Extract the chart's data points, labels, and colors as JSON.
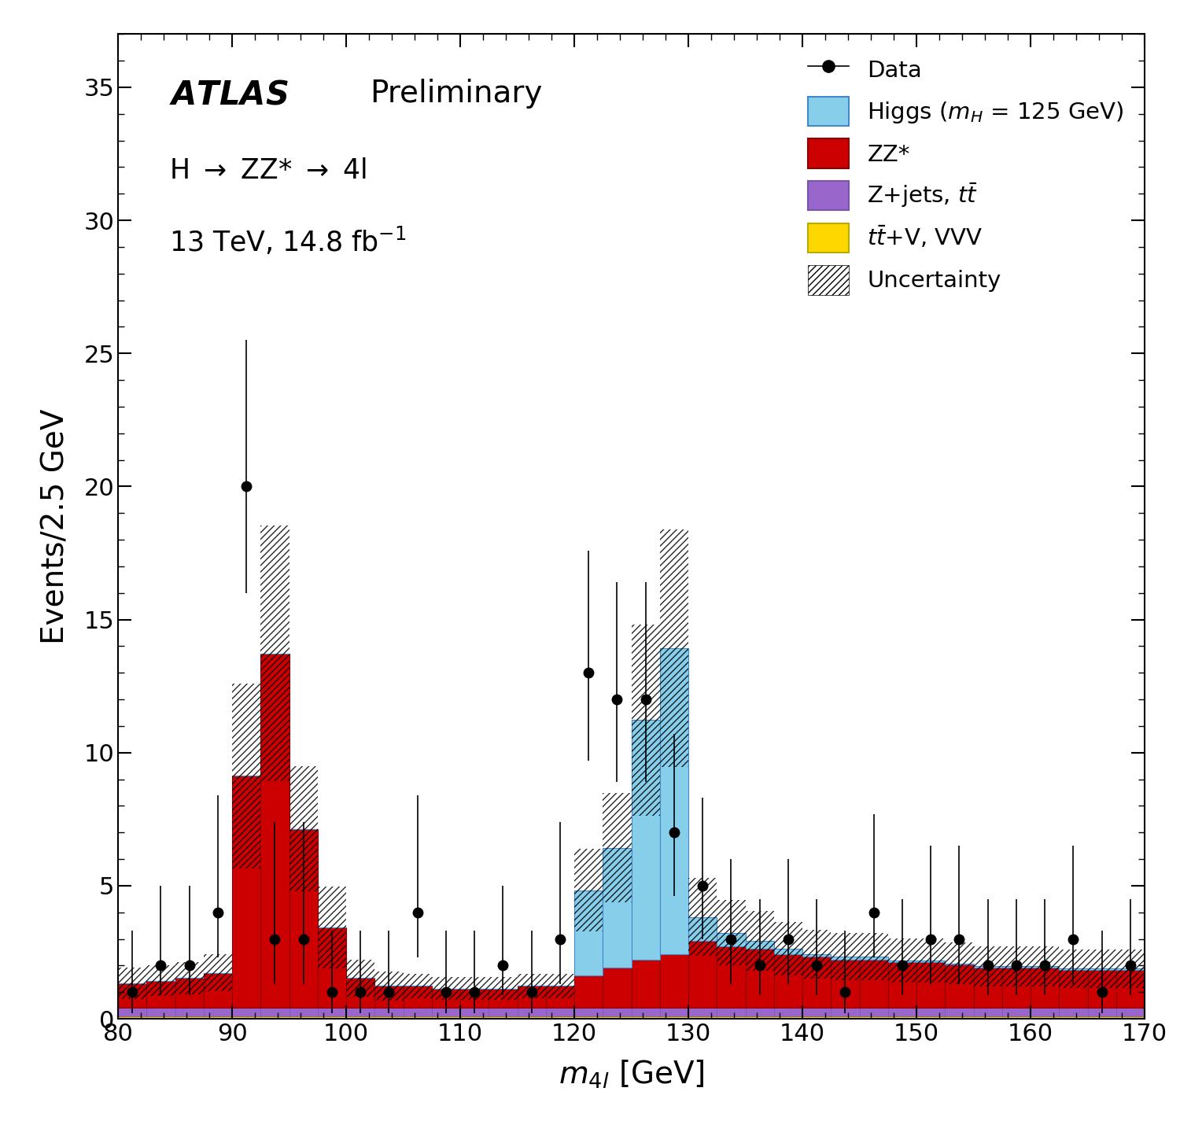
{
  "bin_edges": [
    80,
    82.5,
    85,
    87.5,
    90,
    92.5,
    95,
    97.5,
    100,
    102.5,
    105,
    107.5,
    110,
    112.5,
    115,
    117.5,
    120,
    122.5,
    125,
    127.5,
    130,
    132.5,
    135,
    137.5,
    140,
    142.5,
    145,
    147.5,
    150,
    152.5,
    155,
    157.5,
    160,
    162.5,
    165,
    167.5,
    170
  ],
  "zz_values": [
    0.9,
    1.0,
    1.1,
    1.3,
    8.7,
    13.3,
    6.7,
    3.0,
    1.1,
    0.8,
    0.8,
    0.7,
    0.7,
    0.7,
    0.8,
    0.8,
    1.2,
    1.5,
    1.8,
    2.0,
    2.5,
    2.3,
    2.2,
    2.0,
    1.9,
    1.8,
    1.8,
    1.7,
    1.7,
    1.6,
    1.5,
    1.5,
    1.5,
    1.4,
    1.4,
    1.4
  ],
  "higgs_values": [
    0.0,
    0.0,
    0.0,
    0.0,
    0.0,
    0.0,
    0.0,
    0.0,
    0.0,
    0.0,
    0.0,
    0.0,
    0.0,
    0.0,
    0.0,
    0.0,
    3.2,
    4.5,
    9.0,
    11.5,
    0.9,
    0.5,
    0.3,
    0.2,
    0.1,
    0.1,
    0.1,
    0.05,
    0.05,
    0.05,
    0.05,
    0.05,
    0.05,
    0.05,
    0.05,
    0.05
  ],
  "zjets_values": [
    0.35,
    0.35,
    0.35,
    0.35,
    0.35,
    0.35,
    0.35,
    0.35,
    0.35,
    0.35,
    0.35,
    0.35,
    0.35,
    0.35,
    0.35,
    0.35,
    0.35,
    0.35,
    0.35,
    0.35,
    0.35,
    0.35,
    0.35,
    0.35,
    0.35,
    0.35,
    0.35,
    0.35,
    0.35,
    0.35,
    0.35,
    0.35,
    0.35,
    0.35,
    0.35,
    0.35
  ],
  "ttV_values": [
    0.08,
    0.08,
    0.08,
    0.08,
    0.08,
    0.08,
    0.08,
    0.08,
    0.08,
    0.08,
    0.08,
    0.08,
    0.08,
    0.08,
    0.08,
    0.08,
    0.08,
    0.08,
    0.08,
    0.08,
    0.08,
    0.08,
    0.08,
    0.08,
    0.08,
    0.08,
    0.08,
    0.08,
    0.08,
    0.08,
    0.08,
    0.08,
    0.08,
    0.08,
    0.08,
    0.08
  ],
  "data_x": [
    81.25,
    83.75,
    86.25,
    88.75,
    91.25,
    93.75,
    96.25,
    98.75,
    101.25,
    103.75,
    106.25,
    108.75,
    111.25,
    113.75,
    116.25,
    118.75,
    121.25,
    123.75,
    126.25,
    128.75,
    131.25,
    133.75,
    136.25,
    138.75,
    141.25,
    143.75,
    146.25,
    148.75,
    151.25,
    153.75,
    156.25,
    158.75,
    161.25,
    163.75,
    166.25,
    168.75
  ],
  "data_y": [
    1.0,
    2.0,
    2.0,
    4.0,
    20.0,
    3.0,
    3.0,
    1.0,
    1.0,
    1.0,
    4.0,
    1.0,
    1.0,
    2.0,
    1.0,
    3.0,
    13.0,
    12.0,
    12.0,
    7.0,
    5.0,
    3.0,
    2.0,
    3.0,
    2.0,
    1.0,
    4.0,
    2.0,
    3.0,
    3.0,
    2.0,
    2.0,
    2.0,
    3.0,
    1.0,
    2.0
  ],
  "data_yerr_lo": [
    0.8,
    1.1,
    1.1,
    1.7,
    4.0,
    1.7,
    1.7,
    0.8,
    0.8,
    0.8,
    1.7,
    0.8,
    0.8,
    1.1,
    0.8,
    1.7,
    3.3,
    3.1,
    3.1,
    2.4,
    2.0,
    1.7,
    1.1,
    1.7,
    1.1,
    0.8,
    1.7,
    1.1,
    1.7,
    1.7,
    1.1,
    1.1,
    1.1,
    1.7,
    0.8,
    1.1
  ],
  "data_yerr_hi": [
    2.3,
    3.0,
    3.0,
    4.4,
    5.5,
    4.4,
    4.4,
    2.3,
    2.3,
    2.3,
    4.4,
    2.3,
    2.3,
    3.0,
    2.3,
    4.4,
    4.6,
    4.4,
    4.4,
    3.7,
    3.3,
    3.0,
    2.5,
    3.0,
    2.5,
    2.3,
    3.7,
    2.5,
    3.5,
    3.5,
    2.5,
    2.5,
    2.5,
    3.5,
    2.3,
    2.5
  ],
  "unc_hi": [
    0.45,
    0.4,
    0.4,
    0.4,
    0.38,
    0.35,
    0.33,
    0.45,
    0.45,
    0.45,
    0.38,
    0.38,
    0.38,
    0.38,
    0.38,
    0.38,
    0.32,
    0.32,
    0.32,
    0.32,
    0.38,
    0.38,
    0.38,
    0.38,
    0.38,
    0.38,
    0.38,
    0.38,
    0.38,
    0.38,
    0.38,
    0.38,
    0.38,
    0.38,
    0.38,
    0.38
  ],
  "zz_color": "#CC0000",
  "higgs_color": "#87CEEB",
  "zjets_color": "#9966CC",
  "ttV_color": "#FFD700",
  "higgs_edge_color": "#4488CC",
  "zz_edge_color": "#880000",
  "zjets_edge_color": "#7755AA",
  "ttV_edge_color": "#BBAA00",
  "xmin": 80,
  "xmax": 170,
  "ymin": 0,
  "ymax": 37,
  "yticks": [
    0,
    5,
    10,
    15,
    20,
    25,
    30,
    35
  ],
  "xticks": [
    80,
    90,
    100,
    110,
    120,
    130,
    140,
    150,
    160,
    170
  ]
}
